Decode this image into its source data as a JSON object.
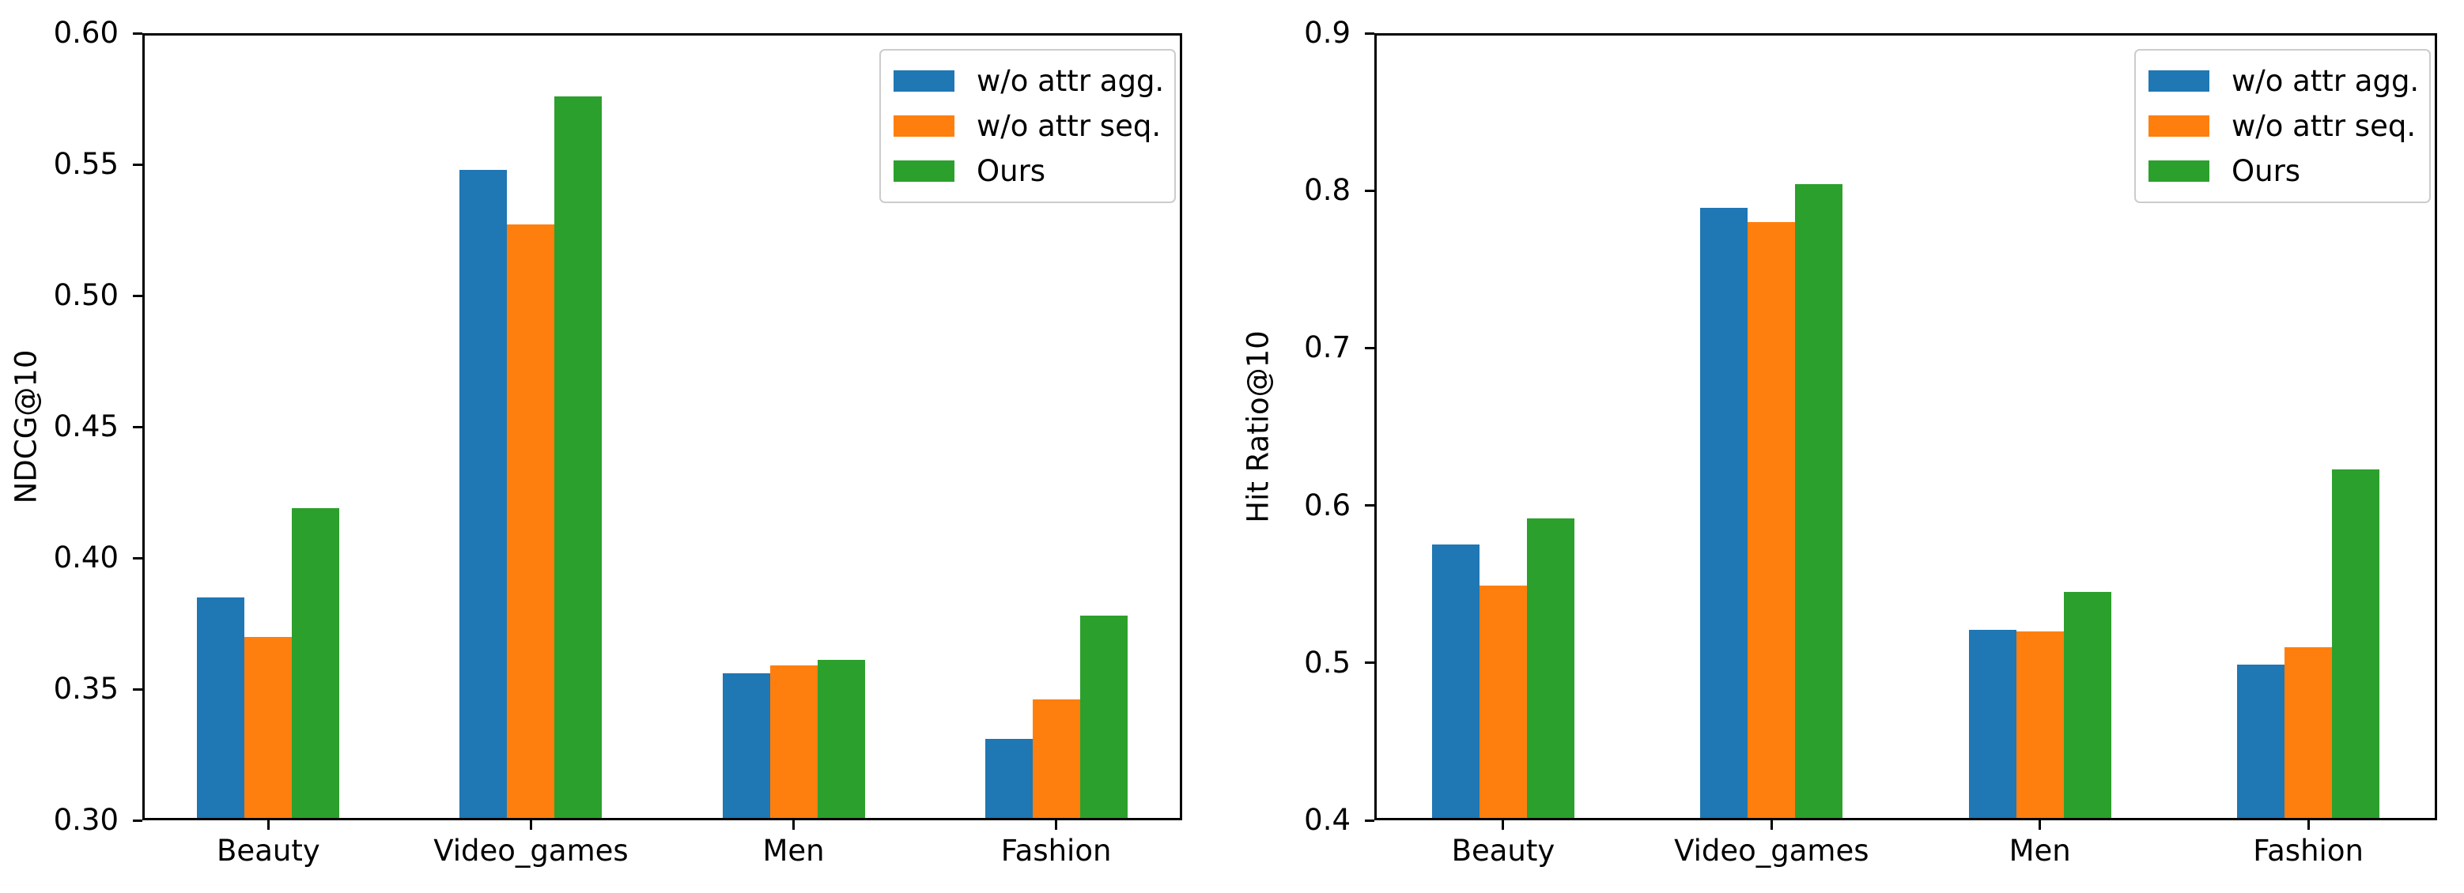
{
  "figure": {
    "background": "#ffffff",
    "axis_color": "#000000",
    "legend_border_color": "#cccccc"
  },
  "chart_data": [
    {
      "type": "bar",
      "title": "",
      "xlabel": "",
      "ylabel": "NDCG@10",
      "categories": [
        "Beauty",
        "Video_games",
        "Men",
        "Fashion"
      ],
      "series": [
        {
          "name": "w/o attr agg.",
          "color": "#1f77b4",
          "values": [
            0.385,
            0.548,
            0.356,
            0.331
          ]
        },
        {
          "name": "w/o attr seq.",
          "color": "#ff7f0e",
          "values": [
            0.37,
            0.527,
            0.359,
            0.346
          ]
        },
        {
          "name": "Ours",
          "color": "#2ca02c",
          "values": [
            0.419,
            0.576,
            0.361,
            0.378
          ]
        }
      ],
      "ylim": [
        0.3,
        0.6
      ],
      "yticks": [
        "0.30",
        "0.35",
        "0.40",
        "0.45",
        "0.50",
        "0.55",
        "0.60"
      ],
      "grid": false,
      "legend_position": "upper right"
    },
    {
      "type": "bar",
      "title": "",
      "xlabel": "",
      "ylabel": "Hit Ratio@10",
      "categories": [
        "Beauty",
        "Video_games",
        "Men",
        "Fashion"
      ],
      "series": [
        {
          "name": "w/o attr agg.",
          "color": "#1f77b4",
          "values": [
            0.575,
            0.789,
            0.521,
            0.499
          ]
        },
        {
          "name": "w/o attr seq.",
          "color": "#ff7f0e",
          "values": [
            0.549,
            0.78,
            0.52,
            0.51
          ]
        },
        {
          "name": "Ours",
          "color": "#2ca02c",
          "values": [
            0.592,
            0.804,
            0.545,
            0.623
          ]
        }
      ],
      "ylim": [
        0.4,
        0.9
      ],
      "yticks": [
        "0.4",
        "0.5",
        "0.6",
        "0.7",
        "0.8",
        "0.9"
      ],
      "grid": false,
      "legend_position": "upper right"
    }
  ]
}
